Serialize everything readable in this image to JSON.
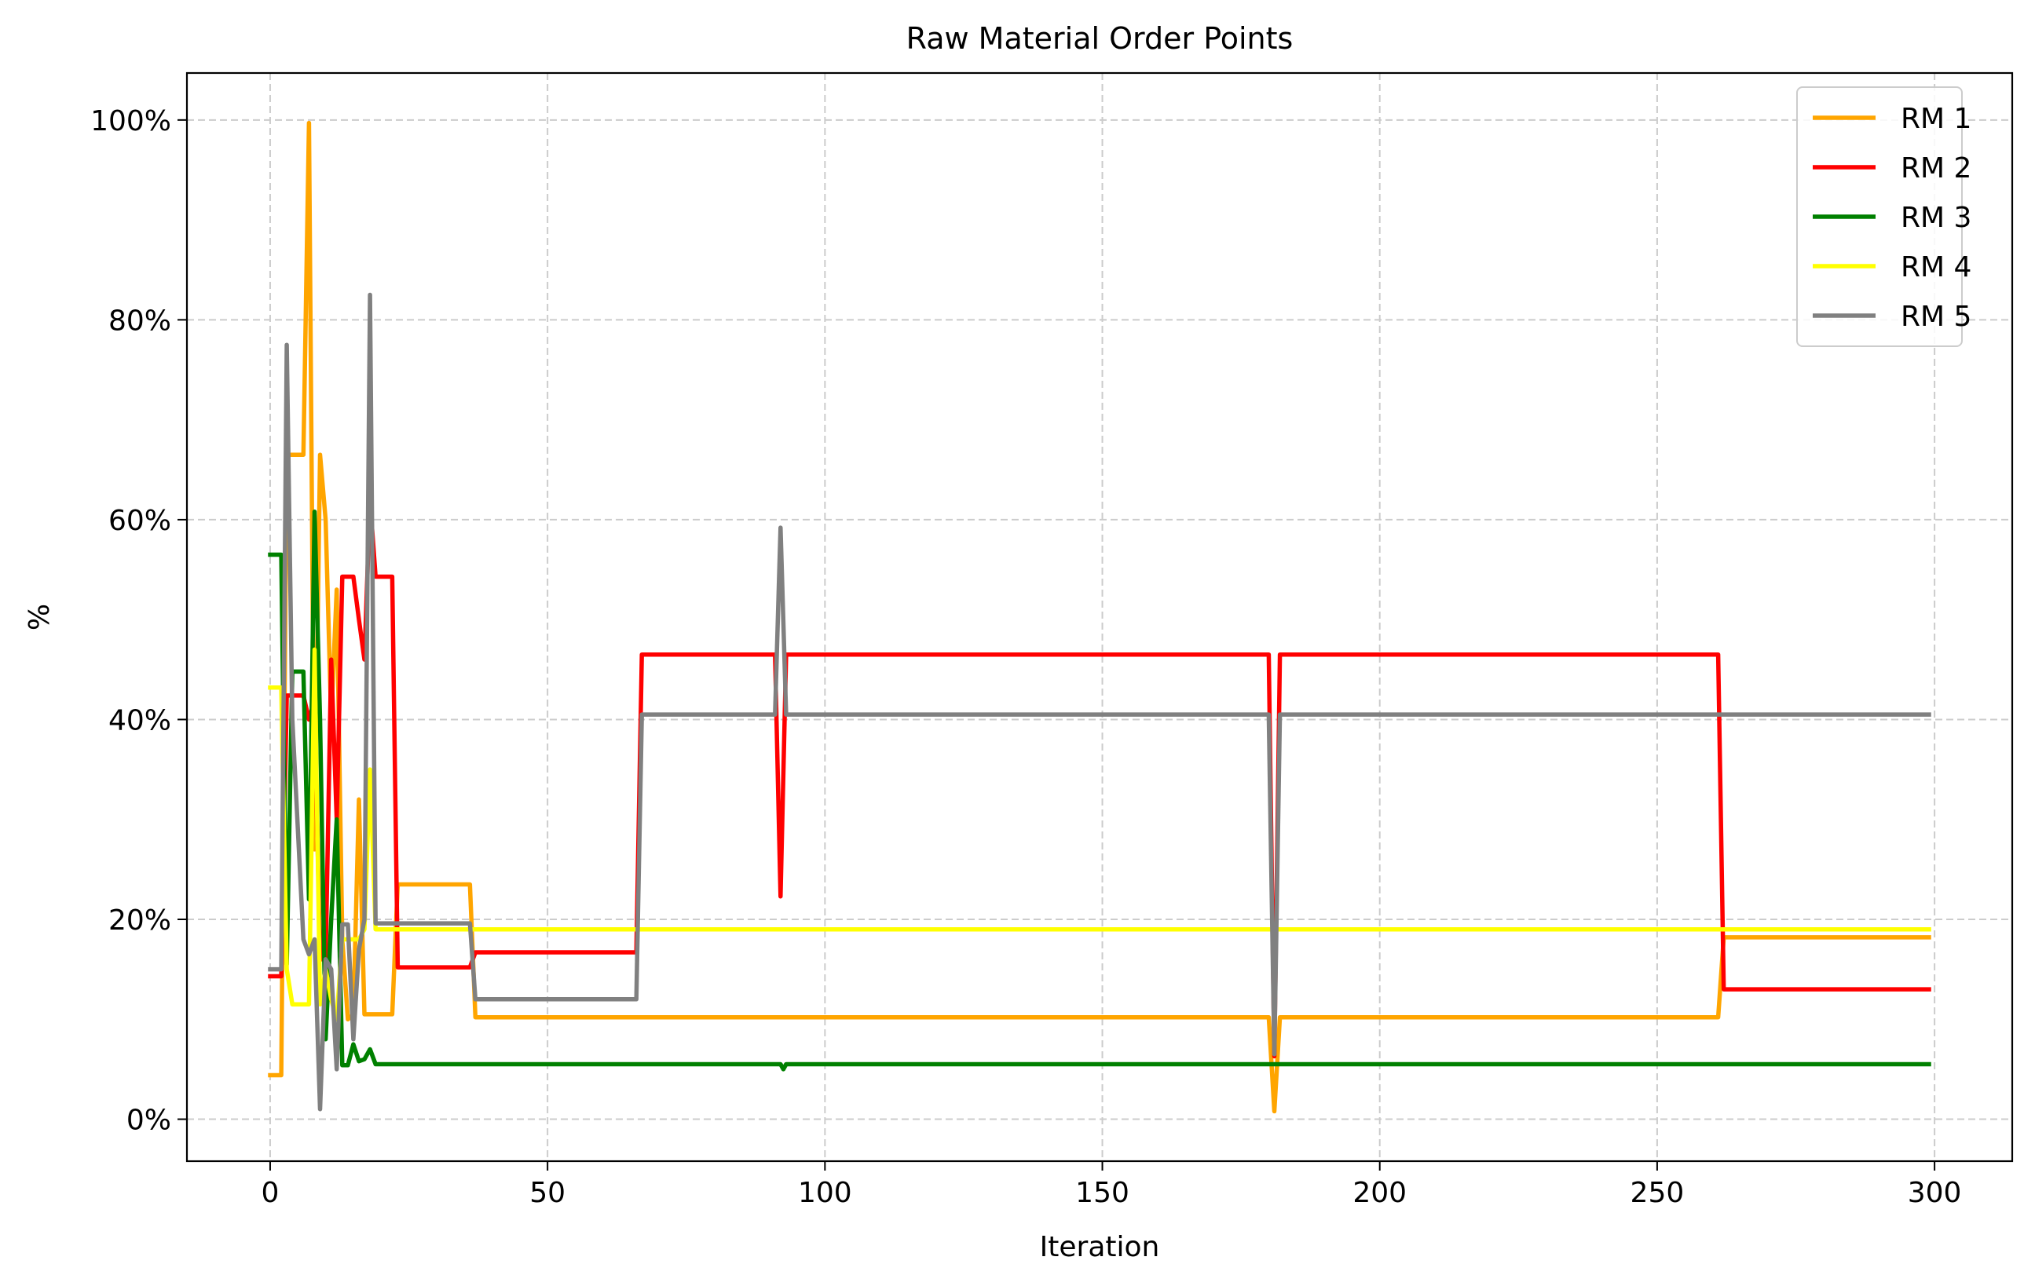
{
  "chart_data": {
    "type": "line",
    "title": "Raw Material Order Points",
    "xlabel": "Iteration",
    "ylabel": "%",
    "xlim": [
      -15,
      314
    ],
    "ylim": [
      -4.2,
      104.7
    ],
    "xticks": [
      0,
      50,
      100,
      150,
      200,
      250,
      300
    ],
    "xtick_labels": [
      "0",
      "50",
      "100",
      "150",
      "200",
      "250",
      "300"
    ],
    "yticks": [
      0,
      20,
      40,
      60,
      80,
      100
    ],
    "ytick_labels": [
      "0%",
      "20%",
      "40%",
      "60%",
      "80%",
      "100%"
    ],
    "grid": true,
    "legend_position": "top-right",
    "series": [
      {
        "name": "RM 1",
        "color": "#FFA500",
        "points": [
          [
            0,
            4.4
          ],
          [
            2,
            4.4
          ],
          [
            3,
            66.5
          ],
          [
            6,
            66.5
          ],
          [
            7,
            99.7
          ],
          [
            8,
            27
          ],
          [
            9,
            66.5
          ],
          [
            10,
            60
          ],
          [
            11,
            40
          ],
          [
            12,
            53
          ],
          [
            13,
            18
          ],
          [
            14,
            10
          ],
          [
            15,
            10.5
          ],
          [
            16,
            32
          ],
          [
            17,
            10.5
          ],
          [
            22,
            10.5
          ],
          [
            23,
            23.5
          ],
          [
            36,
            23.5
          ],
          [
            37,
            10.2
          ],
          [
            180,
            10.2
          ],
          [
            181,
            0.8
          ],
          [
            182,
            10.2
          ],
          [
            261,
            10.2
          ],
          [
            262,
            18.2
          ],
          [
            299,
            18.2
          ]
        ]
      },
      {
        "name": "RM 2",
        "color": "#FF0000",
        "points": [
          [
            0,
            14.3
          ],
          [
            2,
            14.3
          ],
          [
            3,
            42.4
          ],
          [
            6,
            42.4
          ],
          [
            7,
            40
          ],
          [
            8,
            42
          ],
          [
            9,
            16
          ],
          [
            10,
            16
          ],
          [
            11,
            46
          ],
          [
            12,
            30
          ],
          [
            13,
            54.3
          ],
          [
            15,
            54.3
          ],
          [
            16,
            50
          ],
          [
            17,
            46
          ],
          [
            18,
            62
          ],
          [
            19,
            54.3
          ],
          [
            22,
            54.3
          ],
          [
            23,
            15.2
          ],
          [
            36,
            15.2
          ],
          [
            37,
            16.7
          ],
          [
            66,
            16.7
          ],
          [
            67,
            46.5
          ],
          [
            91,
            46.5
          ],
          [
            92,
            22.3
          ],
          [
            93,
            46.5
          ],
          [
            180,
            46.5
          ],
          [
            181,
            6.3
          ],
          [
            182,
            46.5
          ],
          [
            261,
            46.5
          ],
          [
            262,
            13
          ],
          [
            299,
            13
          ]
        ]
      },
      {
        "name": "RM 3",
        "color": "#008000",
        "points": [
          [
            0,
            56.5
          ],
          [
            2,
            56.5
          ],
          [
            3,
            15.5
          ],
          [
            4,
            44.8
          ],
          [
            6,
            44.8
          ],
          [
            7,
            22
          ],
          [
            8,
            60.8
          ],
          [
            9,
            40
          ],
          [
            10,
            8
          ],
          [
            11,
            20
          ],
          [
            12,
            30
          ],
          [
            13,
            5.4
          ],
          [
            14,
            5.4
          ],
          [
            15,
            7.5
          ],
          [
            16,
            5.8
          ],
          [
            17,
            6
          ],
          [
            18,
            7
          ],
          [
            19,
            5.5
          ],
          [
            92,
            5.5
          ],
          [
            92.5,
            5.0
          ],
          [
            93,
            5.5
          ],
          [
            299,
            5.5
          ]
        ]
      },
      {
        "name": "RM 4",
        "color": "#FFFF00",
        "points": [
          [
            0,
            43.2
          ],
          [
            2,
            43.2
          ],
          [
            3,
            15
          ],
          [
            4,
            11.5
          ],
          [
            7,
            11.5
          ],
          [
            8,
            47
          ],
          [
            9,
            11.5
          ],
          [
            10,
            15
          ],
          [
            11,
            12
          ],
          [
            12,
            10
          ],
          [
            13,
            18
          ],
          [
            16,
            18
          ],
          [
            17,
            19
          ],
          [
            18,
            35
          ],
          [
            19,
            19
          ],
          [
            299,
            19
          ]
        ]
      },
      {
        "name": "RM 5",
        "color": "#808080",
        "points": [
          [
            0,
            15
          ],
          [
            2,
            15
          ],
          [
            3,
            77.5
          ],
          [
            4,
            40
          ],
          [
            6,
            18
          ],
          [
            7,
            16.5
          ],
          [
            8,
            18
          ],
          [
            9,
            1
          ],
          [
            10,
            16
          ],
          [
            11,
            15
          ],
          [
            12,
            5
          ],
          [
            13,
            19.5
          ],
          [
            14,
            19.5
          ],
          [
            15,
            8
          ],
          [
            16,
            17
          ],
          [
            17,
            20
          ],
          [
            18,
            82.5
          ],
          [
            19,
            19.6
          ],
          [
            36,
            19.6
          ],
          [
            37,
            12
          ],
          [
            66,
            12
          ],
          [
            67,
            40.5
          ],
          [
            91,
            40.5
          ],
          [
            92,
            59.2
          ],
          [
            93,
            40.5
          ],
          [
            180,
            40.5
          ],
          [
            181,
            6.5
          ],
          [
            182,
            40.5
          ],
          [
            299,
            40.5
          ]
        ]
      }
    ]
  }
}
